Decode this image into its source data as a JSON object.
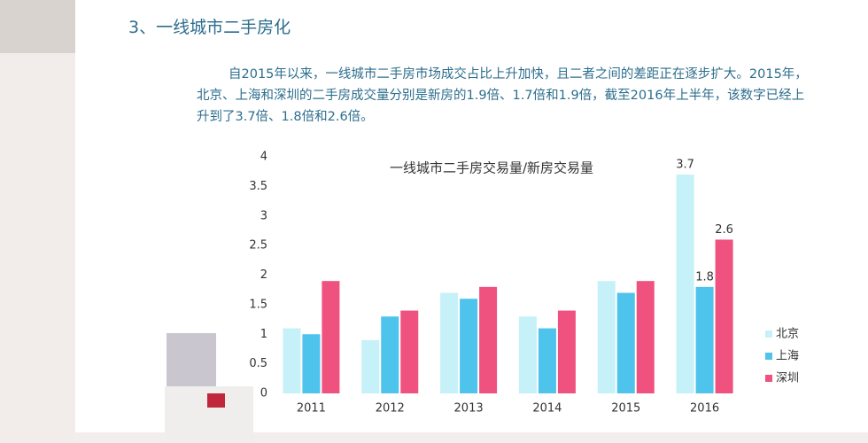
{
  "heading": "3、一线城市二手房化",
  "paragraph": "自2015年以来，一线城市二手房市场成交占比上升加快，且二者之间的差距正在逐步扩大。2015年，北京、上海和深圳的二手房成交量分别是新房的1.9倍、1.7倍和1.9倍，截至2016年上半年，该数字已经上升到了3.7倍、1.8倍和2.6倍。",
  "chart_data": {
    "type": "bar",
    "title": "一线城市二手房交易量/新房交易量",
    "categories": [
      "2011",
      "2012",
      "2013",
      "2014",
      "2015",
      "2016"
    ],
    "series": [
      {
        "name": "北京",
        "color": "#c6f1f8",
        "values": [
          1.1,
          0.9,
          1.7,
          1.3,
          1.9,
          3.7
        ],
        "value_labels": [
          null,
          null,
          null,
          null,
          null,
          "3.7"
        ]
      },
      {
        "name": "上海",
        "color": "#4ec3ec",
        "values": [
          1.0,
          1.3,
          1.6,
          1.1,
          1.7,
          1.8
        ],
        "value_labels": [
          null,
          null,
          null,
          null,
          null,
          "1.8"
        ]
      },
      {
        "name": "深圳",
        "color": "#f0527f",
        "values": [
          1.9,
          1.4,
          1.8,
          1.4,
          1.9,
          2.6
        ],
        "value_labels": [
          null,
          null,
          null,
          null,
          null,
          "2.6"
        ]
      }
    ],
    "ylim": [
      0,
      4
    ],
    "yticks": [
      0,
      0.5,
      1,
      1.5,
      2,
      2.5,
      3,
      3.5,
      4
    ],
    "grid": false,
    "legend": "right"
  }
}
